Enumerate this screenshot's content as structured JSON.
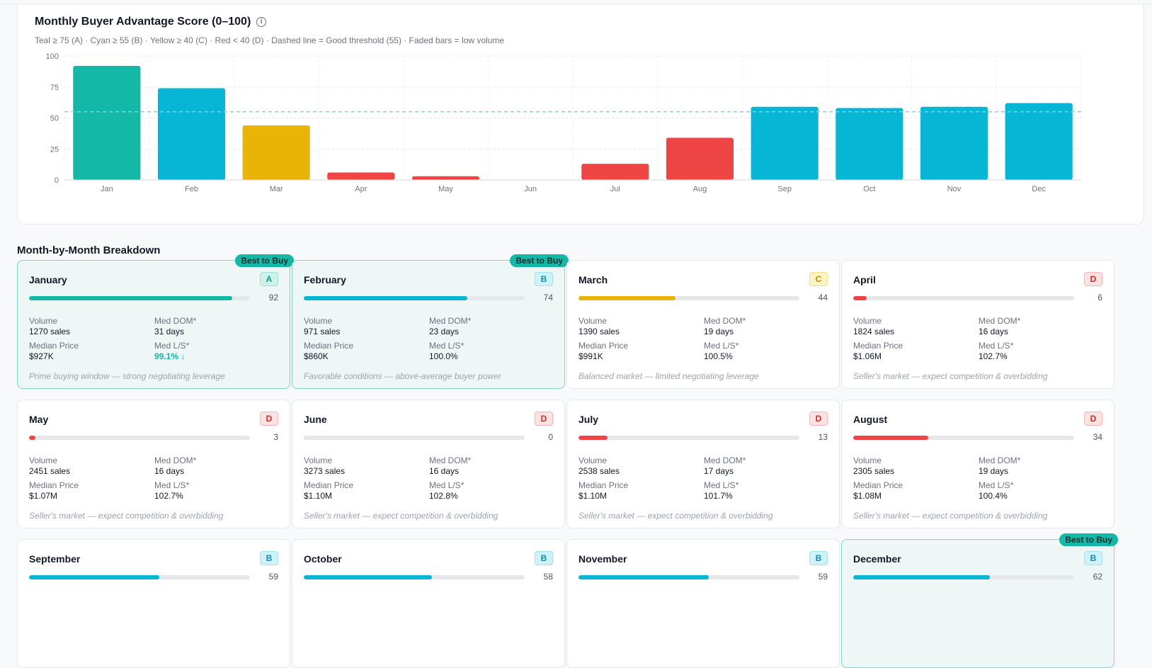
{
  "chart": {
    "title": "Monthly Buyer Advantage Score (0–100)",
    "subtitle": "Teal ≥ 75 (A) · Cyan ≥ 55 (B) · Yellow ≥ 40 (C) · Red < 40 (D) · Dashed line = Good threshold (55) · Faded bars = low volume",
    "info_icon": "info-icon"
  },
  "chart_data": {
    "type": "bar",
    "title": "Monthly Buyer Advantage Score (0–100)",
    "categories": [
      "Jan",
      "Feb",
      "Mar",
      "Apr",
      "May",
      "Jun",
      "Jul",
      "Aug",
      "Sep",
      "Oct",
      "Nov",
      "Dec"
    ],
    "values": [
      92,
      74,
      44,
      6,
      3,
      0,
      13,
      34,
      59,
      58,
      59,
      62
    ],
    "colors": [
      "#14b8a6",
      "#06b6d4",
      "#eab308",
      "#ef4444",
      "#ef4444",
      "#ef4444",
      "#ef4444",
      "#ef4444",
      "#06b6d4",
      "#06b6d4",
      "#06b6d4",
      "#06b6d4"
    ],
    "yticks": [
      0,
      25,
      50,
      75,
      100
    ],
    "ylim": [
      0,
      100
    ],
    "threshold": 55,
    "threshold_color": "#7dd3e8",
    "grid": true,
    "xlabel": "",
    "ylabel": ""
  },
  "section_title": "Month-by-Month Breakdown",
  "labels": {
    "volume": "Volume",
    "dom": "Med DOM*",
    "price": "Median Price",
    "ls": "Med L/S*",
    "best": "Best to Buy"
  },
  "colors": {
    "A": "#14b8a6",
    "B": "#06b6d4",
    "C": "#eab308",
    "D": "#ef4444"
  },
  "months": [
    {
      "name": "January",
      "grade": "A",
      "score": "92",
      "score_value": 92,
      "volume": "1270 sales",
      "dom": "31 days",
      "price": "$927K",
      "ls": "99.1% ↓",
      "ls_good": true,
      "note": "Prime buying window — strong negotiating leverage",
      "best": true
    },
    {
      "name": "February",
      "grade": "B",
      "score": "74",
      "score_value": 74,
      "volume": "971 sales",
      "dom": "23 days",
      "price": "$860K",
      "ls": "100.0%",
      "ls_good": false,
      "note": "Favorable conditions — above-average buyer power",
      "best": true
    },
    {
      "name": "March",
      "grade": "C",
      "score": "44",
      "score_value": 44,
      "volume": "1390 sales",
      "dom": "19 days",
      "price": "$991K",
      "ls": "100.5%",
      "ls_good": false,
      "note": "Balanced market — limited negotiating leverage",
      "best": false
    },
    {
      "name": "April",
      "grade": "D",
      "score": "6",
      "score_value": 6,
      "volume": "1824 sales",
      "dom": "16 days",
      "price": "$1.06M",
      "ls": "102.7%",
      "ls_good": false,
      "note": "Seller's market — expect competition & overbidding",
      "best": false
    },
    {
      "name": "May",
      "grade": "D",
      "score": "3",
      "score_value": 3,
      "volume": "2451 sales",
      "dom": "16 days",
      "price": "$1.07M",
      "ls": "102.7%",
      "ls_good": false,
      "note": "Seller's market — expect competition & overbidding",
      "best": false
    },
    {
      "name": "June",
      "grade": "D",
      "score": "0",
      "score_value": 0,
      "volume": "3273 sales",
      "dom": "16 days",
      "price": "$1.10M",
      "ls": "102.8%",
      "ls_good": false,
      "note": "Seller's market — expect competition & overbidding",
      "best": false
    },
    {
      "name": "July",
      "grade": "D",
      "score": "13",
      "score_value": 13,
      "volume": "2538 sales",
      "dom": "17 days",
      "price": "$1.10M",
      "ls": "101.7%",
      "ls_good": false,
      "note": "Seller's market — expect competition & overbidding",
      "best": false
    },
    {
      "name": "August",
      "grade": "D",
      "score": "34",
      "score_value": 34,
      "volume": "2305 sales",
      "dom": "19 days",
      "price": "$1.08M",
      "ls": "100.4%",
      "ls_good": false,
      "note": "Seller's market — expect competition & overbidding",
      "best": false
    },
    {
      "name": "September",
      "grade": "B",
      "score": "59",
      "score_value": 59,
      "best": false
    },
    {
      "name": "October",
      "grade": "B",
      "score": "58",
      "score_value": 58,
      "best": false
    },
    {
      "name": "November",
      "grade": "B",
      "score": "59",
      "score_value": 59,
      "best": false
    },
    {
      "name": "December",
      "grade": "B",
      "score": "62",
      "score_value": 62,
      "best": true
    }
  ]
}
